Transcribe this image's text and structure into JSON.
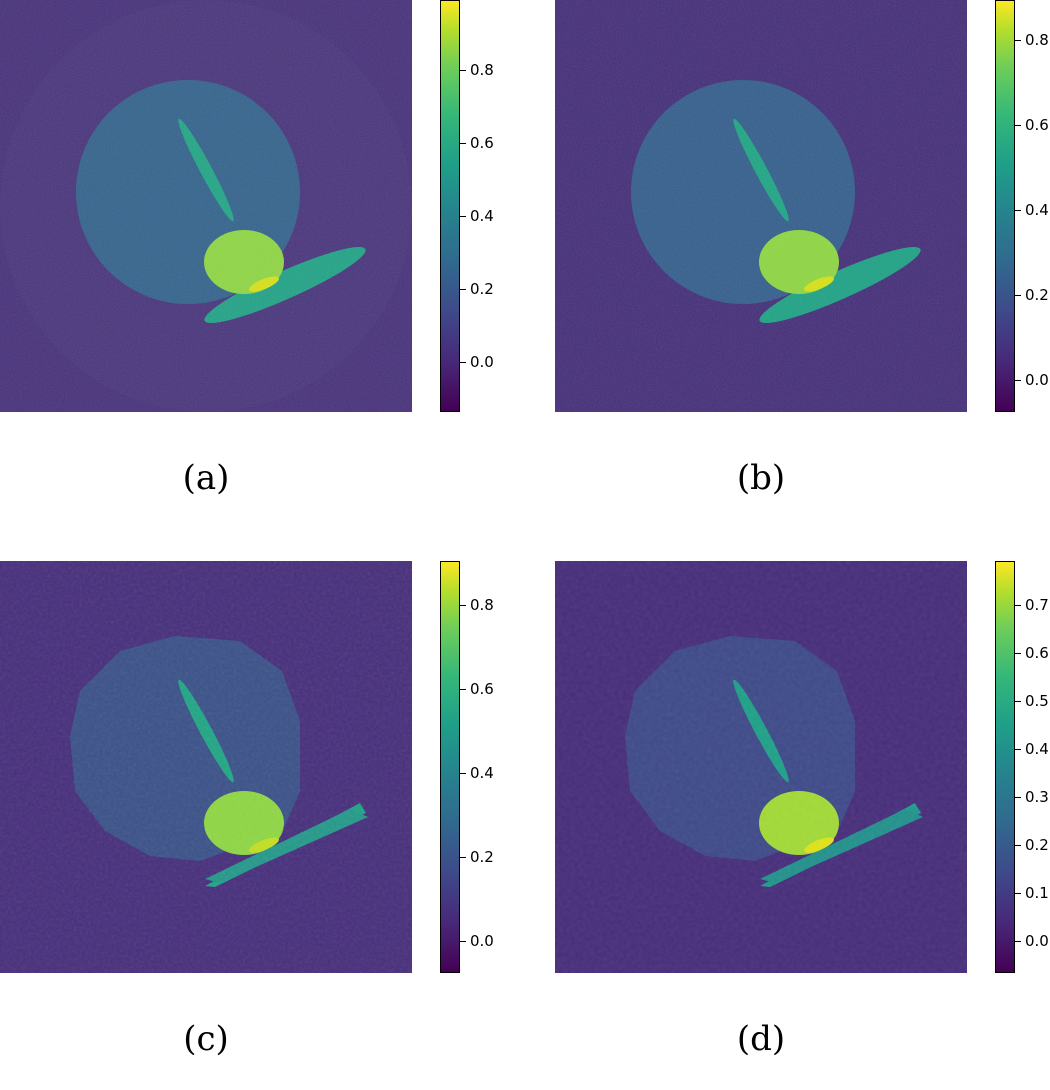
{
  "panels": [
    {
      "id": "a",
      "caption": "(a)",
      "ticks": [
        "0.8",
        "0.6",
        "0.4",
        "0.2",
        "0.0"
      ]
    },
    {
      "id": "b",
      "caption": "(b)",
      "ticks": [
        "0.8",
        "0.6",
        "0.4",
        "0.2",
        "0.0"
      ]
    },
    {
      "id": "c",
      "caption": "(c)",
      "ticks": [
        "0.8",
        "0.6",
        "0.4",
        "0.2",
        "0.0"
      ]
    },
    {
      "id": "d",
      "caption": "(d)",
      "ticks": [
        "0.7",
        "0.6",
        "0.5",
        "0.4",
        "0.3",
        "0.2",
        "0.1",
        "0.0"
      ]
    }
  ],
  "colors": {
    "background": "#46307a",
    "outer_ring": "#48347c",
    "large_disk": "#33638d",
    "ellipse_stripe": "#21a685",
    "bright_disk": "#8fd744",
    "bright_spot": "#d8e219",
    "bar": "#20a386"
  }
}
